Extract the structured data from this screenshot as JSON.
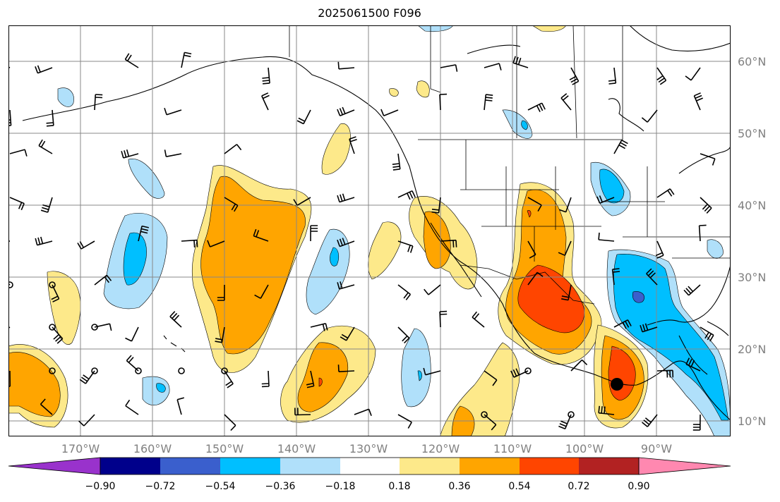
{
  "title": "2025061500 F096",
  "lat_labels": [
    "60°N",
    "50°N",
    "40°N",
    "30°N",
    "20°N",
    "10°N"
  ],
  "lon_labels": [
    "170°W",
    "160°W",
    "150°W",
    "140°W",
    "130°W",
    "120°W",
    "110°W",
    "100°W",
    "90°W"
  ],
  "colorbar": {
    "ticks": [
      "−0.90",
      "−0.72",
      "−0.54",
      "−0.36",
      "−0.18",
      "0.18",
      "0.36",
      "0.54",
      "0.72",
      "0.90"
    ],
    "colors": [
      "#9932cc",
      "#00008b",
      "#3a5fcd",
      "#00bfff",
      "#b0e0fa",
      "#ffffff",
      "#fde98a",
      "#ffa500",
      "#ff4500",
      "#b22222",
      "#ff88b0"
    ]
  },
  "map": {
    "extent": {
      "lon_min": -180,
      "lon_max": -80,
      "lat_min": 8,
      "lat_max": 65
    },
    "marker": {
      "lon": -95.7,
      "lat": 15.0,
      "color": "#000000"
    }
  }
}
